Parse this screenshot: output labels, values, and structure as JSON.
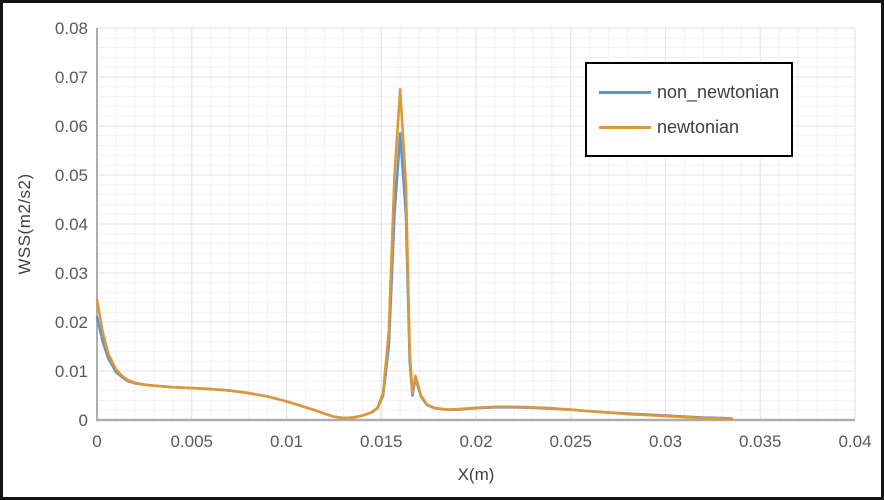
{
  "chart_data": {
    "type": "line",
    "xlabel": "X(m)",
    "ylabel": "WSS(m2/s2)",
    "xlim": [
      0,
      0.04
    ],
    "ylim": [
      0,
      0.08
    ],
    "grid": true,
    "x_minor_step": 0.001,
    "y_minor_step": 0.002,
    "x_ticks": [
      {
        "value": 0,
        "label": "0"
      },
      {
        "value": 0.005,
        "label": "0.005"
      },
      {
        "value": 0.01,
        "label": "0.01"
      },
      {
        "value": 0.015,
        "label": "0.015"
      },
      {
        "value": 0.02,
        "label": "0.02"
      },
      {
        "value": 0.025,
        "label": "0.025"
      },
      {
        "value": 0.03,
        "label": "0.03"
      },
      {
        "value": 0.035,
        "label": "0.035"
      },
      {
        "value": 0.04,
        "label": "0.04"
      }
    ],
    "y_ticks": [
      {
        "value": 0,
        "label": "0"
      },
      {
        "value": 0.01,
        "label": "0.01"
      },
      {
        "value": 0.02,
        "label": "0.02"
      },
      {
        "value": 0.03,
        "label": "0.03"
      },
      {
        "value": 0.04,
        "label": "0.04"
      },
      {
        "value": 0.05,
        "label": "0.05"
      },
      {
        "value": 0.06,
        "label": "0.06"
      },
      {
        "value": 0.07,
        "label": "0.07"
      },
      {
        "value": 0.08,
        "label": "0.08"
      }
    ],
    "legend": {
      "position": "top-right-inside",
      "border_color": "#000000",
      "background": "#ffffff"
    },
    "x_shared": [
      0,
      0.0003,
      0.0006,
      0.001,
      0.0013,
      0.0016,
      0.002,
      0.0025,
      0.003,
      0.004,
      0.005,
      0.006,
      0.007,
      0.008,
      0.009,
      0.0095,
      0.01,
      0.0105,
      0.011,
      0.0115,
      0.012,
      0.0125,
      0.013,
      0.0135,
      0.014,
      0.0145,
      0.0148,
      0.0151,
      0.0154,
      0.0157,
      0.016,
      0.0163,
      0.0165,
      0.01665,
      0.0168,
      0.0171,
      0.0174,
      0.0178,
      0.0185,
      0.019,
      0.02,
      0.021,
      0.022,
      0.023,
      0.024,
      0.025,
      0.026,
      0.027,
      0.028,
      0.029,
      0.03,
      0.031,
      0.032,
      0.033,
      0.0335
    ],
    "series": [
      {
        "name": "non_newtonian",
        "color": "#6494CA",
        "peak": {
          "x": 0.016,
          "y": 0.0585
        },
        "y": [
          0.021,
          0.016,
          0.0125,
          0.0098,
          0.0088,
          0.008,
          0.0075,
          0.0072,
          0.007,
          0.0067,
          0.0065,
          0.0063,
          0.006,
          0.0055,
          0.0048,
          0.0043,
          0.0038,
          0.0032,
          0.0026,
          0.002,
          0.0013,
          0.0007,
          0.0004,
          0.0005,
          0.0009,
          0.0016,
          0.0024,
          0.005,
          0.015,
          0.042,
          0.0585,
          0.042,
          0.012,
          0.005,
          0.0085,
          0.0048,
          0.0031,
          0.0024,
          0.0021,
          0.0021,
          0.0024,
          0.0026,
          0.0026,
          0.0025,
          0.0023,
          0.0021,
          0.0018,
          0.0015,
          0.0013,
          0.0011,
          0.0009,
          0.0007,
          0.0005,
          0.0004,
          0.0003
        ]
      },
      {
        "name": "newtonian",
        "color": "#DC9838",
        "peak": {
          "x": 0.016,
          "y": 0.0675
        },
        "y": [
          0.0245,
          0.018,
          0.0135,
          0.0103,
          0.0091,
          0.0082,
          0.0076,
          0.0072,
          0.007,
          0.0067,
          0.0065,
          0.0063,
          0.006,
          0.0055,
          0.0048,
          0.0043,
          0.0038,
          0.0032,
          0.0026,
          0.002,
          0.0013,
          0.0007,
          0.0004,
          0.0005,
          0.0009,
          0.0016,
          0.0025,
          0.0055,
          0.018,
          0.05,
          0.0675,
          0.048,
          0.014,
          0.0055,
          0.009,
          0.005,
          0.0032,
          0.0025,
          0.0021,
          0.0022,
          0.0025,
          0.0027,
          0.0027,
          0.0026,
          0.0024,
          0.0021,
          0.0018,
          0.0015,
          0.0012,
          0.001,
          0.0008,
          0.0006,
          0.0004,
          0.0003,
          0.0002
        ]
      }
    ],
    "colors": {
      "frame_border": "#141414",
      "axis_line": "#ADADAD",
      "gridline_major": "#E2E2E2",
      "gridline_minor": "#F1F1F1",
      "tick_label": "#595959",
      "axis_title": "#3F3F3F",
      "legend_text": "#404040"
    }
  }
}
